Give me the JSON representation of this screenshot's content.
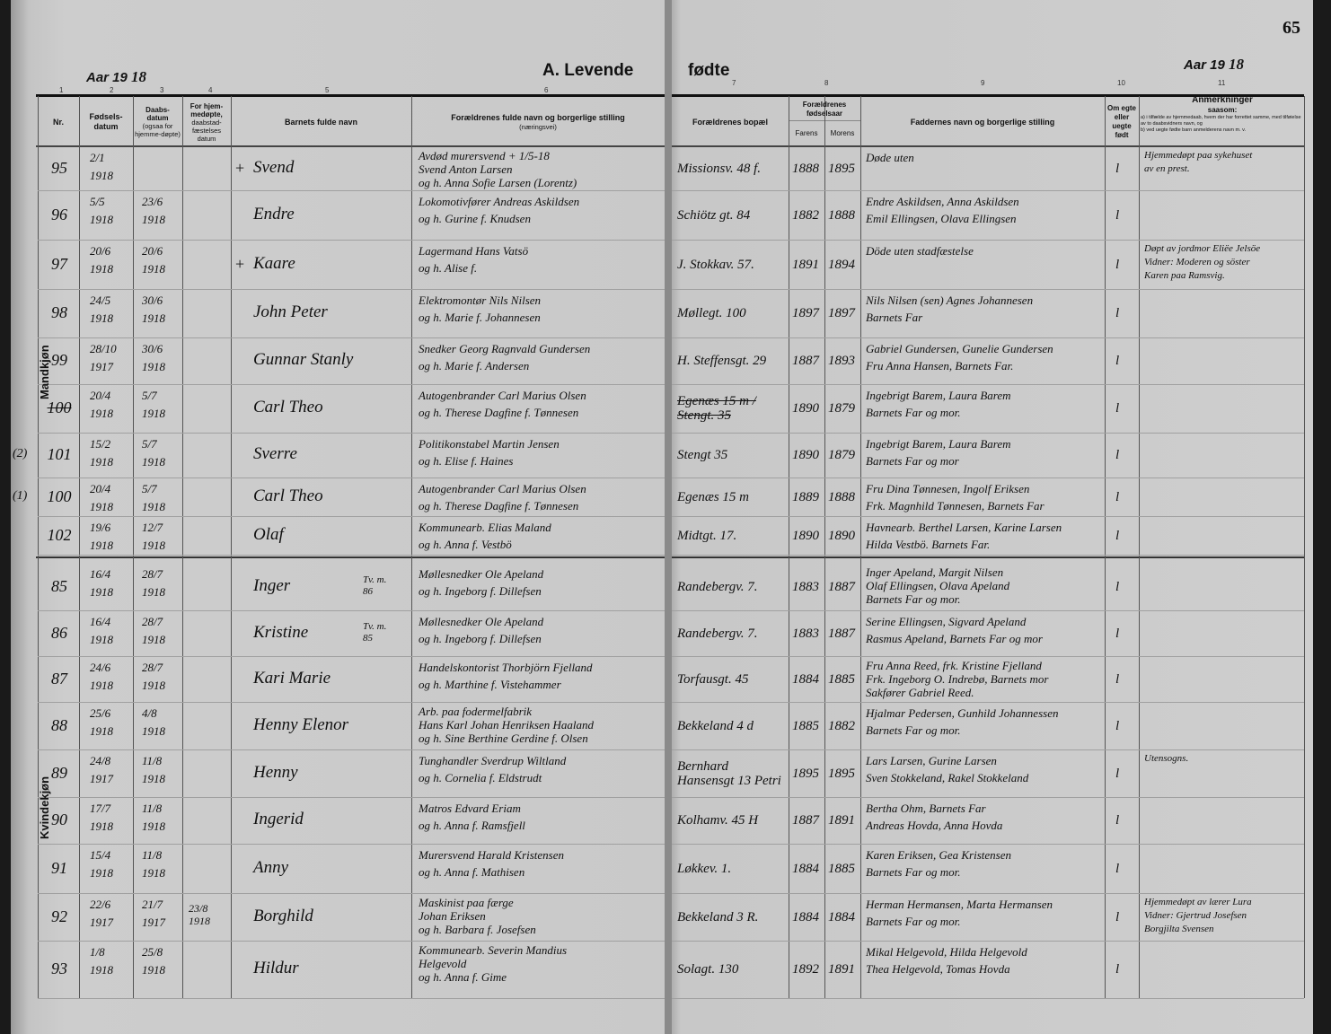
{
  "header": {
    "year_label_left": "Aar 19",
    "year_hand_left": "18",
    "title_left": "A.  Levende",
    "title_right": "fødte",
    "year_label_right": "Aar 19",
    "year_hand_right": "18",
    "page_number": "65",
    "column_numbers": [
      "1",
      "2",
      "3",
      "4",
      "5",
      "6",
      "7",
      "8",
      "9",
      "10",
      "11"
    ]
  },
  "columns": {
    "nr": "Nr.",
    "birth_date": "Fødsels-\ndatum",
    "baptism_date": "Daabs-\ndatum",
    "baptism_note": "(ogsaa for hjemme-døpte)",
    "home_baptized": "For hjem-\nmedøpte,",
    "home_baptized_note": "daabstad-fæstelses datum",
    "child_name": "Barnets fulde navn",
    "parents": "Forældrenes fulde navn og borgerlige stilling",
    "parents_note": "(næringsvei)",
    "residence": "Forældrenes bopæl",
    "birth_year": "Forældrenes fødselsaar",
    "father": "Farens",
    "mother": "Morens",
    "godparents": "Faddernes navn og borgerlige stilling",
    "legitimate": "Om egte eller uegte født",
    "remarks_title": "Anmerkninger",
    "remarks_sub": "saasom:",
    "remarks_a": "a) i tilfælde av hjemmedaab, hvem der har forrettet samme, med tilføielse av to daabsvidners navn, og",
    "remarks_b": "b) ved uegte fødte barn anmelderens navn m. v."
  },
  "sections": {
    "male": "Mandkjøn",
    "female": "Kvindekjøn"
  },
  "rows": [
    {
      "margin": "",
      "nr": "95",
      "birth": [
        "2/1",
        "1918"
      ],
      "bapt": [
        "",
        ""
      ],
      "home": "",
      "mark": "+",
      "name": "Svend",
      "parents": [
        "Avdød murersvend  + 1/5-18",
        "Svend Anton Larsen",
        "og h. Anna Sofie Larsen (Lorentz)"
      ],
      "res": "Missionsv. 48 f.",
      "fy": "1888",
      "my": "1895",
      "god": [
        "Døde uten"
      ],
      "legit": "l",
      "rem": [
        "Hjemmedøpt paa sykehuset",
        "av en prest."
      ]
    },
    {
      "margin": "",
      "nr": "96",
      "birth": [
        "5/5",
        "1918"
      ],
      "bapt": [
        "23/6",
        "1918"
      ],
      "home": "",
      "mark": "",
      "name": "Endre",
      "parents": [
        "Lokomotivfører Andreas Askildsen",
        "og h. Gurine f. Knudsen"
      ],
      "res": "Schiötz gt. 84",
      "fy": "1882",
      "my": "1888",
      "god": [
        "Endre Askildsen, Anna Askildsen",
        "Emil Ellingsen, Olava Ellingsen"
      ],
      "legit": "l",
      "rem": []
    },
    {
      "margin": "",
      "nr": "97",
      "birth": [
        "20/6",
        "1918"
      ],
      "bapt": [
        "20/6",
        "1918"
      ],
      "home": "",
      "mark": "+",
      "name": "Kaare",
      "parents": [
        "Lagermand Hans Vatsö",
        "og h. Alise f."
      ],
      "res": "J. Stokkav. 57.",
      "fy": "1891",
      "my": "1894",
      "god": [
        "Döde uten stadfæstelse"
      ],
      "legit": "l",
      "rem": [
        "Døpt av jordmor Eliëe Jelsöe",
        "Vidner: Moderen og söster",
        "Karen paa Ramsvig."
      ]
    },
    {
      "margin": "",
      "nr": "98",
      "birth": [
        "24/5",
        "1918"
      ],
      "bapt": [
        "30/6",
        "1918"
      ],
      "home": "",
      "mark": "",
      "name": "John Peter",
      "parents": [
        "Elektromontør Nils Nilsen",
        "og h. Marie f. Johannesen"
      ],
      "res": "Møllegt. 100",
      "fy": "1897",
      "my": "1897",
      "god": [
        "Nils Nilsen (sen) Agnes Johannesen",
        "Barnets Far"
      ],
      "legit": "l",
      "rem": []
    },
    {
      "margin": "",
      "nr": "99",
      "birth": [
        "28/10",
        "1917"
      ],
      "bapt": [
        "30/6",
        "1918"
      ],
      "home": "",
      "mark": "",
      "name": "Gunnar Stanly",
      "parents": [
        "Snedker Georg Ragnvald Gundersen",
        "og h. Marie f. Andersen"
      ],
      "res": "H. Steffensgt. 29",
      "fy": "1887",
      "my": "1893",
      "god": [
        "Gabriel Gundersen, Gunelie Gundersen",
        "Fru Anna Hansen, Barnets Far."
      ],
      "legit": "l",
      "rem": []
    },
    {
      "margin": "",
      "nr": "100",
      "birth": [
        "20/4",
        "1918"
      ],
      "bapt": [
        "5/7",
        "1918"
      ],
      "home": "",
      "mark": "",
      "name": "Carl Theo",
      "parents": [
        "Autogenbrander Carl Marius Olsen",
        "og h. Therese Dagfine f. Tønnesen"
      ],
      "res": "Egenæs 15 m / Stengt. 35",
      "fy": "1890",
      "my": "1879",
      "god": [
        "Ingebrigt Barem, Laura Barem",
        "Barnets Far og mor."
      ],
      "legit": "l",
      "rem": [],
      "struck": true
    },
    {
      "margin": "(2)",
      "nr": "101",
      "birth": [
        "15/2",
        "1918"
      ],
      "bapt": [
        "5/7",
        "1918"
      ],
      "home": "",
      "mark": "",
      "name": "Sverre",
      "parents": [
        "Politikonstabel Martin Jensen",
        "og h. Elise f. Haines"
      ],
      "res": "Stengt 35",
      "fy": "1890",
      "my": "1879",
      "god": [
        "Ingebrigt Barem, Laura Barem",
        "Barnets Far og mor"
      ],
      "legit": "l",
      "rem": []
    },
    {
      "margin": "(1)",
      "nr": "100",
      "birth": [
        "20/4",
        "1918"
      ],
      "bapt": [
        "5/7",
        "1918"
      ],
      "home": "",
      "mark": "",
      "name": "Carl Theo",
      "parents": [
        "Autogenbrander Carl Marius Olsen",
        "og h. Therese Dagfine f. Tønnesen"
      ],
      "res": "Egenæs 15 m",
      "fy": "1889",
      "my": "1888",
      "god": [
        "Fru Dina Tønnesen, Ingolf Eriksen",
        "Frk. Magnhild Tønnesen, Barnets Far"
      ],
      "legit": "l",
      "rem": []
    },
    {
      "margin": "",
      "nr": "102",
      "birth": [
        "19/6",
        "1918"
      ],
      "bapt": [
        "12/7",
        "1918"
      ],
      "home": "",
      "mark": "",
      "name": "Olaf",
      "parents": [
        "Kommunearb. Elias Maland",
        "og h. Anna f. Vestbö"
      ],
      "res": "Midtgt. 17.",
      "fy": "1890",
      "my": "1890",
      "god": [
        "Havnearb. Berthel Larsen, Karine Larsen",
        "Hilda Vestbö.  Barnets Far."
      ],
      "legit": "l",
      "rem": []
    },
    {
      "margin": "",
      "nr": "85",
      "birth": [
        "16/4",
        "1918"
      ],
      "bapt": [
        "28/7",
        "1918"
      ],
      "home": "",
      "mark": "",
      "name": "Inger",
      "twin": "Tv. m. 86",
      "parents": [
        "Møllesnedker Ole Apeland",
        "og h. Ingeborg f. Dillefsen"
      ],
      "res": "Randebergv. 7.",
      "fy": "1883",
      "my": "1887",
      "god": [
        "Inger Apeland, Margit Nilsen",
        "Olaf Ellingsen, Olava Apeland",
        "Barnets Far og mor."
      ],
      "legit": "l",
      "rem": []
    },
    {
      "margin": "",
      "nr": "86",
      "birth": [
        "16/4",
        "1918"
      ],
      "bapt": [
        "28/7",
        "1918"
      ],
      "home": "",
      "mark": "",
      "name": "Kristine",
      "twin": "Tv. m. 85",
      "parents": [
        "Møllesnedker Ole Apeland",
        "og h. Ingeborg f. Dillefsen"
      ],
      "res": "Randebergv. 7.",
      "fy": "1883",
      "my": "1887",
      "god": [
        "Serine Ellingsen, Sigvard Apeland",
        "Rasmus Apeland, Barnets Far og mor"
      ],
      "legit": "l",
      "rem": []
    },
    {
      "margin": "",
      "nr": "87",
      "birth": [
        "24/6",
        "1918"
      ],
      "bapt": [
        "28/7",
        "1918"
      ],
      "home": "",
      "mark": "",
      "name": "Kari Marie",
      "parents": [
        "Handelskontorist Thorbjörn Fjelland",
        "og h. Marthine f. Vistehammer"
      ],
      "res": "Torfausgt. 45",
      "fy": "1884",
      "my": "1885",
      "god": [
        "Fru Anna Reed, frk. Kristine Fjelland",
        "Frk. Ingeborg O. Indrebø, Barnets mor",
        "Sakfører Gabriel Reed."
      ],
      "legit": "l",
      "rem": []
    },
    {
      "margin": "",
      "nr": "88",
      "birth": [
        "25/6",
        "1918"
      ],
      "bapt": [
        "4/8",
        "1918"
      ],
      "home": "",
      "mark": "",
      "name": "Henny Elenor",
      "parents": [
        "Arb. paa fodermelfabrik",
        "Hans Karl Johan Henriksen Haaland",
        "og h. Sine Berthine Gerdine f. Olsen"
      ],
      "res": "Bekkeland 4 d",
      "fy": "1885",
      "my": "1882",
      "god": [
        "Hjalmar Pedersen, Gunhild Johannessen",
        "Barnets Far og mor."
      ],
      "legit": "l",
      "rem": []
    },
    {
      "margin": "",
      "nr": "89",
      "birth": [
        "24/8",
        "1917"
      ],
      "bapt": [
        "11/8",
        "1918"
      ],
      "home": "",
      "mark": "",
      "name": "Henny",
      "parents": [
        "Tunghandler Sverdrup Wiltland",
        "og h. Cornelia f. Eldstrudt"
      ],
      "res": "Bernhard Hansensgt 13 Petri",
      "fy": "1895",
      "my": "1895",
      "god": [
        "Lars Larsen, Gurine Larsen",
        "Sven Stokkeland, Rakel Stokkeland"
      ],
      "legit": "l",
      "rem": [
        "Utensogns."
      ]
    },
    {
      "margin": "",
      "nr": "90",
      "birth": [
        "17/7",
        "1918"
      ],
      "bapt": [
        "11/8",
        "1918"
      ],
      "home": "",
      "mark": "",
      "name": "Ingerid",
      "parents": [
        "Matros Edvard Eriam",
        "og h. Anna f. Ramsfjell"
      ],
      "res": "Kolhamv. 45 H",
      "fy": "1887",
      "my": "1891",
      "god": [
        "Bertha Ohm, Barnets Far",
        "Andreas Hovda, Anna Hovda"
      ],
      "legit": "l",
      "rem": []
    },
    {
      "margin": "",
      "nr": "91",
      "birth": [
        "15/4",
        "1918"
      ],
      "bapt": [
        "11/8",
        "1918"
      ],
      "home": "",
      "mark": "",
      "name": "Anny",
      "parents": [
        "Murersvend Harald Kristensen",
        "og h. Anna f. Mathisen"
      ],
      "res": "Løkkev. 1.",
      "fy": "1884",
      "my": "1885",
      "god": [
        "Karen Eriksen, Gea Kristensen",
        "Barnets Far og mor."
      ],
      "legit": "l",
      "rem": []
    },
    {
      "margin": "",
      "nr": "92",
      "birth": [
        "22/6",
        "1917"
      ],
      "bapt": [
        "21/7",
        "1917"
      ],
      "home": "23/8 1918",
      "mark": "",
      "name": "Borghild",
      "parents": [
        "Maskinist paa færge",
        "Johan Eriksen",
        "og h. Barbara f. Josefsen"
      ],
      "res": "Bekkeland 3 R.",
      "fy": "1884",
      "my": "1884",
      "god": [
        "Herman Hermansen, Marta Hermansen",
        "Barnets Far og mor."
      ],
      "legit": "l",
      "rem": [
        "Hjemmedøpt av lærer Lura",
        "Vidner: Gjertrud Josefsen",
        "Borgjilta Svensen"
      ]
    },
    {
      "margin": "",
      "nr": "93",
      "birth": [
        "1/8",
        "1918"
      ],
      "bapt": [
        "25/8",
        "1918"
      ],
      "home": "",
      "mark": "",
      "name": "Hildur",
      "parents": [
        "Kommunearb. Severin Mandius",
        "Helgevold",
        "og h. Anna f. Gime"
      ],
      "res": "Solagt. 130",
      "fy": "1892",
      "my": "1891",
      "god": [
        "Mikal Helgevold, Hilda Helgevold",
        "Thea Helgevold, Tomas Hovda"
      ],
      "legit": "l",
      "rem": []
    }
  ]
}
